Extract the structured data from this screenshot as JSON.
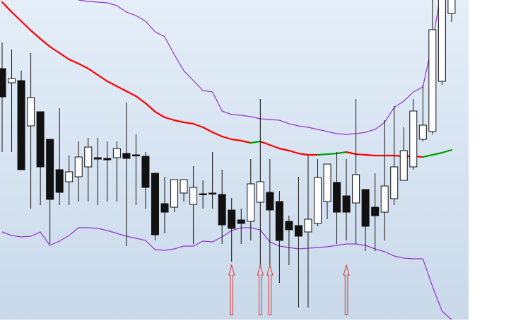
{
  "chart_data": {
    "type": "candlestick",
    "ylim": [
      0,
      461
    ],
    "open": [
      364,
      344,
      347,
      283,
      303,
      264,
      221,
      204,
      211,
      225,
      238,
      237,
      238,
      244,
      242,
      240,
      216,
      173,
      168,
      188,
      172,
      187,
      188,
      186,
      164,
      150,
      148,
      175,
      189,
      176,
      148,
      142,
      133,
      145,
      176,
      203,
      184,
      174,
      193,
      168,
      161,
      180,
      206,
      225,
      264,
      275,
      346,
      442
    ],
    "high": [
      401,
      391,
      361,
      386,
      303,
      264,
      308,
      241,
      261,
      266,
      266,
      261,
      261,
      316,
      271,
      246,
      216,
      211,
      207,
      207,
      226,
      206,
      246,
      221,
      181,
      166,
      236,
      321,
      236,
      191,
      156,
      211,
      241,
      236,
      229,
      246,
      236,
      321,
      193,
      216,
      291,
      311,
      281,
      321,
      341,
      461,
      490,
      510
    ],
    "low": [
      246,
      246,
      221,
      166,
      171,
      116,
      171,
      171,
      176,
      176,
      171,
      176,
      176,
      113,
      171,
      166,
      121,
      131,
      161,
      176,
      116,
      166,
      166,
      116,
      91,
      116,
      121,
      86,
      86,
      61,
      86,
      26,
      26,
      141,
      151,
      116,
      121,
      116,
      106,
      106,
      121,
      171,
      206,
      221,
      261,
      271,
      341,
      430
    ],
    "close": [
      324,
      350,
      221,
      323,
      225,
      179,
      189,
      218,
      239,
      253,
      236,
      235,
      251,
      237,
      241,
      196,
      129,
      161,
      207,
      207,
      196,
      186,
      187,
      143,
      138,
      145,
      201,
      204,
      164,
      121,
      136,
      127,
      151,
      210,
      229,
      161,
      161,
      214,
      141,
      156,
      198,
      225,
      248,
      304,
      284,
      419,
      475,
      500
    ],
    "up_color": "#ffffff",
    "down_color": "#111111",
    "bands": {
      "upper": [
        581,
        561,
        546,
        531,
        516,
        501,
        486,
        471,
        461,
        459,
        458,
        457,
        453,
        444,
        439,
        431,
        416,
        409,
        384,
        361,
        347,
        333,
        331,
        304,
        299,
        298,
        296,
        293,
        292,
        291,
        286,
        283,
        281,
        278,
        275,
        272,
        271,
        272,
        274,
        278,
        288,
        309,
        318,
        331,
        338,
        401,
        481,
        521
      ],
      "middle": [
        458,
        444,
        431,
        418,
        406,
        395,
        386,
        377,
        371,
        364,
        355,
        346,
        339,
        332,
        325,
        315,
        303,
        295,
        291,
        288,
        286,
        281,
        274,
        268,
        264,
        262,
        259,
        261,
        256,
        251,
        248,
        244,
        242,
        242,
        243,
        244,
        246,
        243,
        242,
        241,
        241,
        241,
        240,
        240,
        239,
        242,
        245,
        249
      ],
      "lower": [
        133,
        128,
        126,
        127,
        133,
        114,
        120,
        128,
        139,
        139,
        138,
        135,
        131,
        127,
        124,
        121,
        108,
        107,
        109,
        113,
        113,
        120,
        119,
        126,
        135,
        139,
        139,
        136,
        119,
        113,
        111,
        109,
        110,
        111,
        112,
        114,
        116,
        116,
        114,
        109,
        105,
        99,
        96,
        95,
        95,
        56,
        21,
        9
      ],
      "band_color": "#9933cc",
      "middle_up_color": "#00a000",
      "middle_down_color": "#ff0000"
    },
    "signals": [
      24,
      27,
      28,
      36
    ],
    "signal_color": "#e03030"
  }
}
